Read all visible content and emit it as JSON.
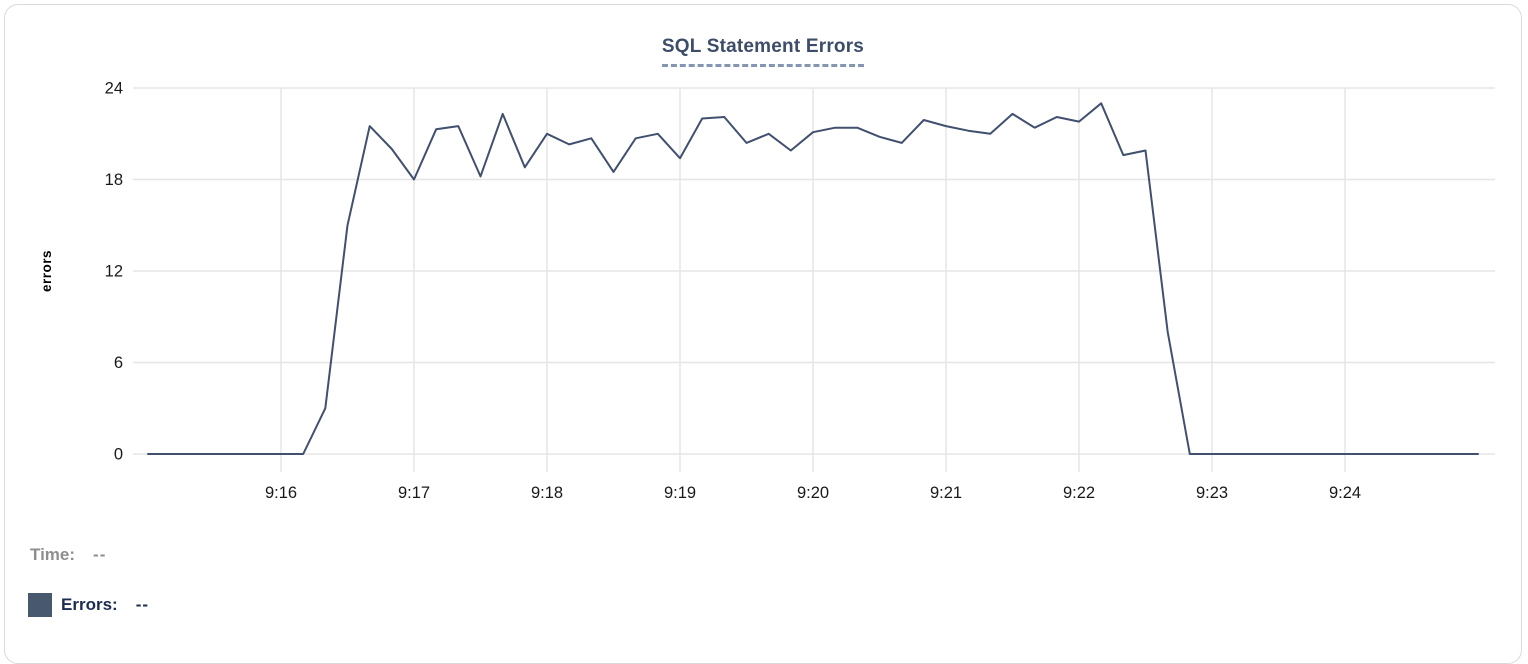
{
  "chart": {
    "title": "SQL Statement Errors"
  },
  "legend": {
    "time_label": "Time:",
    "time_value": "--",
    "errors_label": "Errors:",
    "errors_value": "--",
    "swatch_color": "#48596f"
  },
  "colors": {
    "series_line": "#41506e",
    "grid": "#e5e5e5",
    "tick_text": "#191919",
    "title_text": "#3d4c69",
    "title_underline": "#8595b2",
    "legend_time_text": "#8e8e8e",
    "legend_errors_text": "#1b2b52",
    "card_border": "#d9dadc"
  },
  "chart_data": {
    "type": "line",
    "title": "SQL Statement Errors",
    "xlabel": "",
    "ylabel": "errors",
    "ylim": [
      0,
      24
    ],
    "y_ticks": [
      0,
      6,
      12,
      18,
      24
    ],
    "grid": true,
    "x_start": "9:15:00",
    "x_end": "9:25:00",
    "interval_seconds": 10,
    "x_tick_labels": [
      "9:16",
      "9:17",
      "9:18",
      "9:19",
      "9:20",
      "9:21",
      "9:22",
      "9:23",
      "9:24"
    ],
    "series": [
      {
        "name": "Errors",
        "color": "#41506e",
        "values": [
          0,
          0,
          0,
          0,
          0,
          0,
          0,
          0,
          3,
          15,
          21.5,
          20,
          18,
          21.3,
          21.5,
          18.2,
          22.3,
          18.8,
          21,
          20.3,
          20.7,
          18.5,
          20.7,
          21,
          19.4,
          22,
          22.1,
          20.4,
          21,
          19.9,
          21.1,
          21.4,
          21.4,
          20.8,
          20.4,
          21.9,
          21.5,
          21.2,
          21,
          22.3,
          21.4,
          22.1,
          21.8,
          23,
          19.6,
          19.9,
          8,
          0,
          0,
          0,
          0,
          0,
          0,
          0,
          0,
          0,
          0,
          0,
          0,
          0,
          0
        ]
      }
    ],
    "legend_position": "bottom-left"
  }
}
